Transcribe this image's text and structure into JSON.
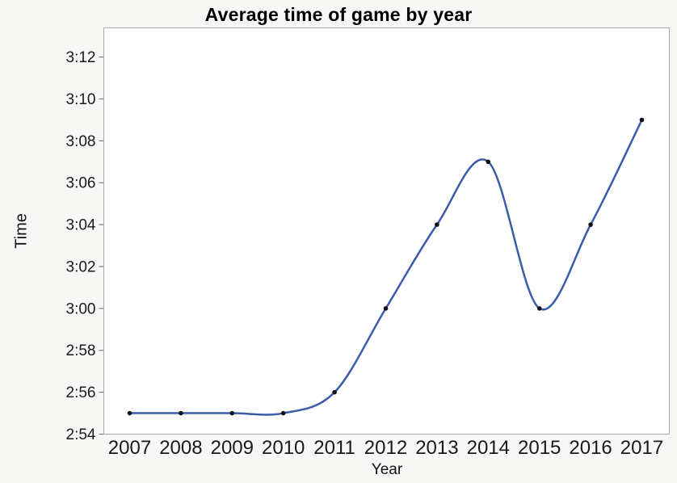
{
  "figure": {
    "background_color": "#f7f7f6",
    "plot_background_color": "#ffffff",
    "frame_color": "#aaaaaa",
    "tick_color": "#7f7f7f",
    "text_color": "#1a1a1a"
  },
  "chart_data": {
    "type": "line",
    "title": "Average time of game by year",
    "xlabel": "Year",
    "ylabel": "Time",
    "smoothing": "spline",
    "line_color": "#3a5ca9",
    "marker_color": "#101018",
    "points": [
      {
        "year": 2007,
        "time": "2:55"
      },
      {
        "year": 2008,
        "time": "2:55"
      },
      {
        "year": 2009,
        "time": "2:55"
      },
      {
        "year": 2010,
        "time": "2:55"
      },
      {
        "year": 2011,
        "time": "2:56"
      },
      {
        "year": 2012,
        "time": "3:00"
      },
      {
        "year": 2013,
        "time": "3:04"
      },
      {
        "year": 2014,
        "time": "3:07"
      },
      {
        "year": 2015,
        "time": "3:00"
      },
      {
        "year": 2016,
        "time": "3:04"
      },
      {
        "year": 2017,
        "time": "3:09"
      }
    ],
    "x_ticks": [
      2007,
      2008,
      2009,
      2010,
      2011,
      2012,
      2013,
      2014,
      2015,
      2016,
      2017
    ],
    "y_ticks": [
      "2:54",
      "2:56",
      "2:58",
      "3:00",
      "3:02",
      "3:04",
      "3:06",
      "3:08",
      "3:10",
      "3:12"
    ],
    "ylim": [
      "2:54",
      "3:12"
    ],
    "grid": false,
    "legend": false
  }
}
